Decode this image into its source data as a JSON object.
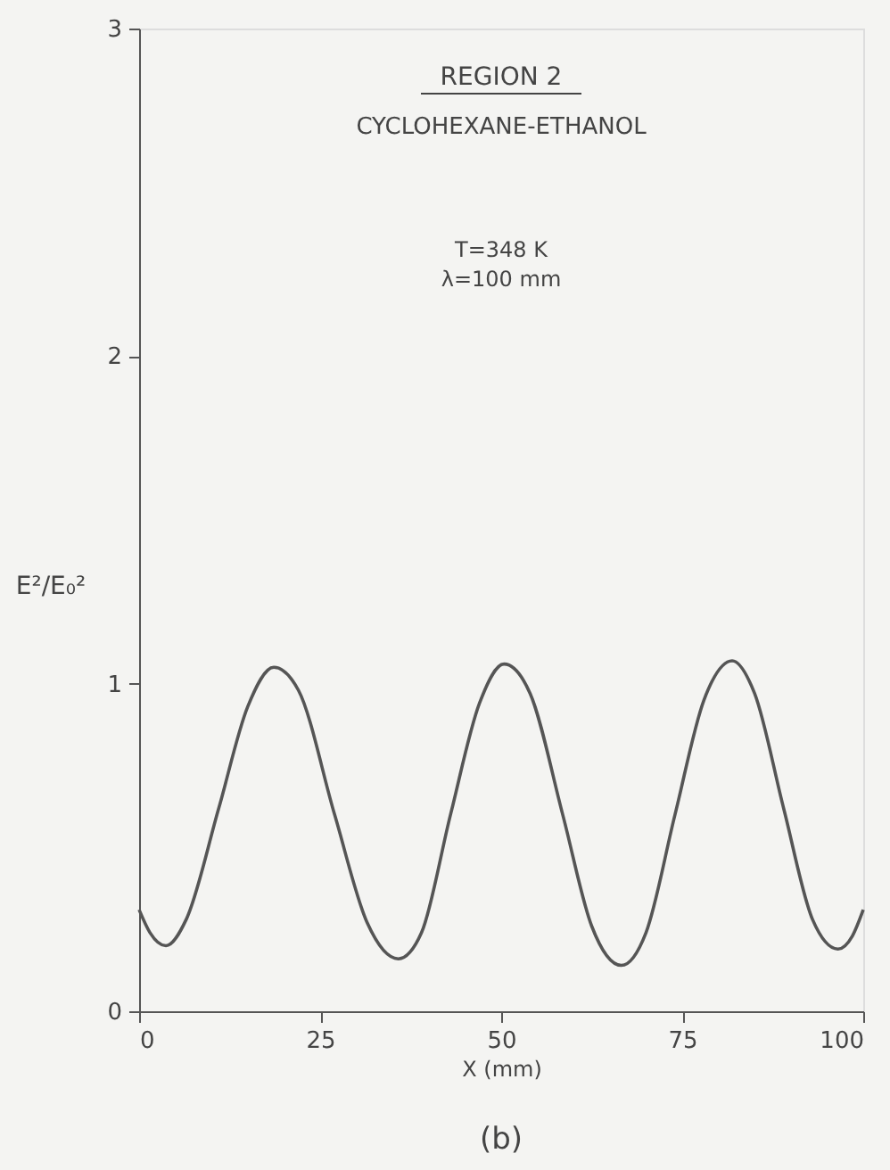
{
  "chart_data": {
    "type": "line",
    "xlabel": "X (mm)",
    "ylabel": "E²/E₀²",
    "annotations": [
      "REGION 2",
      "CYCLOHEXANE-ETHANOL",
      "T=348 K",
      "λ=100 mm",
      "(b)"
    ],
    "x": [
      0,
      1.5,
      3.7,
      6.5,
      11,
      15,
      18.6,
      22,
      27,
      31.5,
      35.8,
      39,
      43,
      47,
      50.4,
      54,
      58.5,
      62.5,
      66.6,
      70,
      74,
      78,
      81.9,
      85,
      89,
      93,
      96.5,
      98.5,
      100
    ],
    "series": [
      {
        "color": "#555555",
        "values": [
          0.31,
          0.24,
          0.2,
          0.28,
          0.62,
          0.93,
          1.05,
          0.98,
          0.6,
          0.27,
          0.16,
          0.24,
          0.6,
          0.94,
          1.06,
          0.97,
          0.6,
          0.26,
          0.14,
          0.24,
          0.6,
          0.95,
          1.07,
          0.97,
          0.62,
          0.28,
          0.19,
          0.23,
          0.31
        ]
      }
    ],
    "xlim": [
      0,
      100
    ],
    "ylim": [
      0,
      3
    ],
    "xticks": [
      0,
      25,
      50,
      75,
      100
    ],
    "yticks": [
      0,
      1,
      2,
      3
    ],
    "grid": false,
    "marker": "none",
    "line_style": "solid"
  }
}
